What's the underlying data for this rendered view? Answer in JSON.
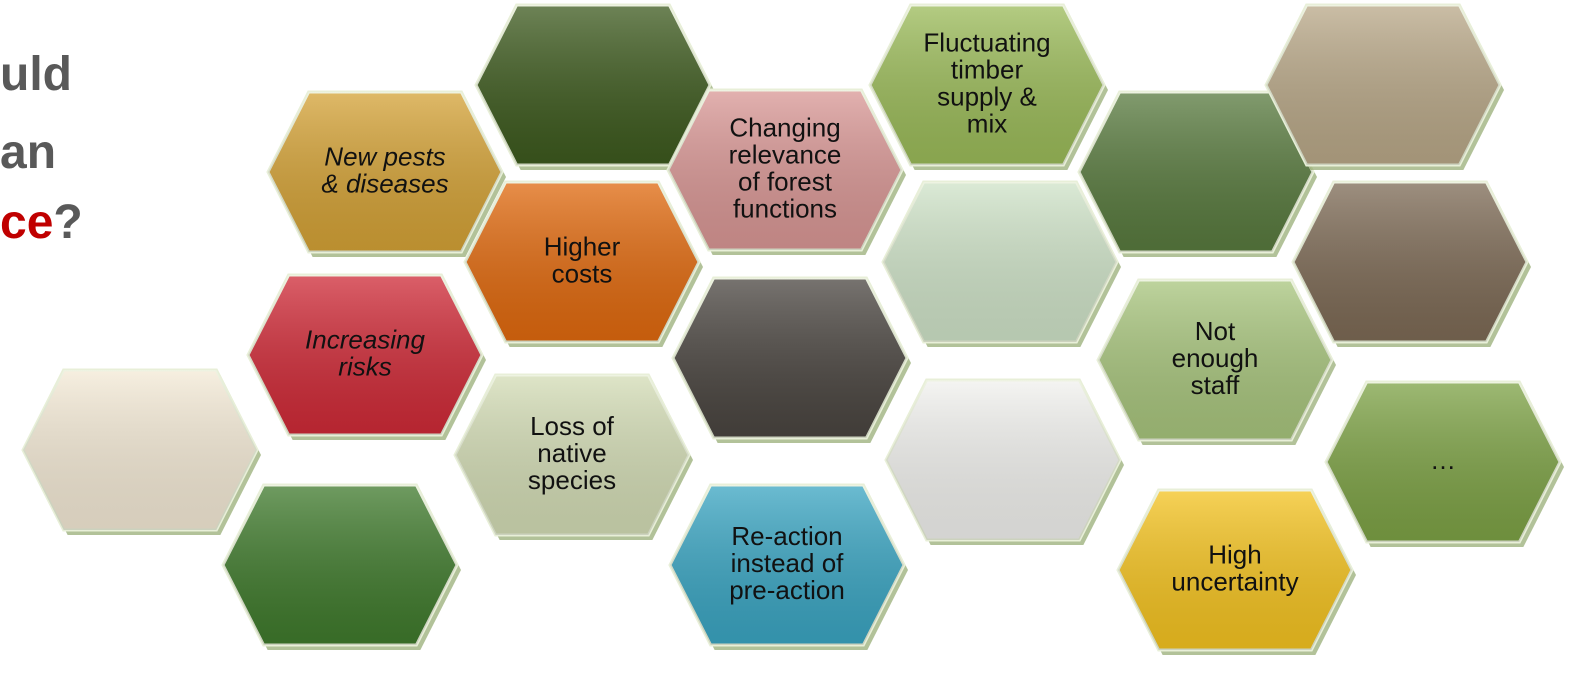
{
  "title": {
    "lines": [
      "uld",
      "an"
    ],
    "last_line": {
      "highlight": "ce",
      "rest": "?"
    }
  },
  "hexagons": [
    {
      "lines": [
        "New pests",
        "& diseases"
      ]
    },
    {
      "lines": [
        "Higher",
        "costs"
      ]
    },
    {
      "lines": [
        "Increasing",
        "risks"
      ]
    },
    {
      "lines": [
        "Loss of",
        "native",
        "species"
      ]
    },
    {
      "lines": [
        "Changing",
        "relevance",
        "of forest",
        "functions"
      ]
    },
    {
      "lines": [
        "Re-action",
        "instead of",
        "pre-action"
      ]
    },
    {
      "lines": [
        "Fluctuating",
        "timber",
        "supply &",
        "mix"
      ]
    },
    {
      "lines": [
        "Not",
        "enough",
        "staff"
      ]
    },
    {
      "lines": [
        "High",
        "uncertainty"
      ]
    },
    {
      "lines": [
        "…"
      ]
    }
  ]
}
